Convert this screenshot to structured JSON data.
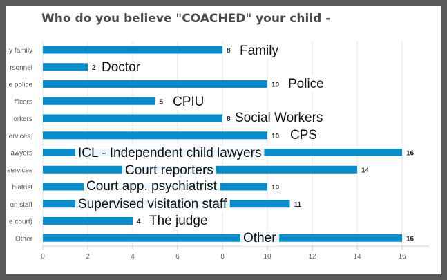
{
  "chart_data": {
    "type": "bar",
    "orientation": "horizontal",
    "title": "Who do you believe \"COACHED\" your child -",
    "categories": [
      "y family",
      "rsonnel",
      "e police",
      "fficers",
      "orkers",
      "ervices,",
      "awyers",
      "services",
      "hiatrist",
      "on staff",
      "e court)",
      "Other"
    ],
    "values": [
      8,
      2,
      10,
      5,
      8,
      10,
      16,
      14,
      10,
      11,
      4,
      16
    ],
    "annotations": [
      "Family",
      "Doctor",
      "Police",
      "CPIU",
      "Social Workers",
      "CPS",
      "ICL - Independent child lawyers",
      "Court reporters",
      "Court app.  psychiatrist",
      "Supervised visitation staff",
      "The judge",
      "Other"
    ],
    "xticks": [
      "0",
      "2",
      "4",
      "6",
      "8",
      "10",
      "12",
      "14",
      "16"
    ],
    "xlim": [
      0,
      17.2
    ],
    "grid": true,
    "bar_color": "#0a8ccb"
  }
}
